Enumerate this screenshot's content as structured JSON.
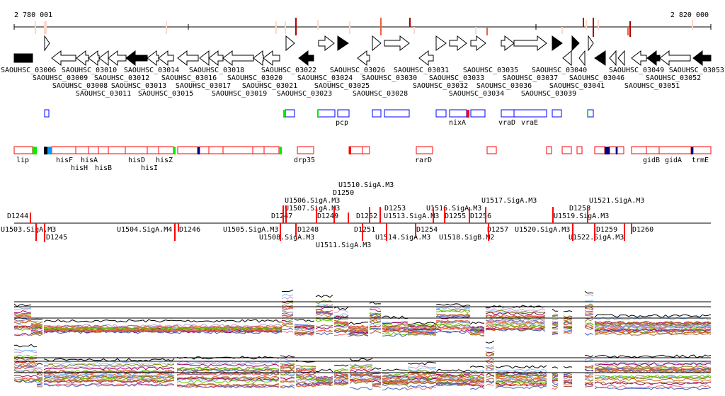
{
  "ruler": {
    "start_label": "2 780 001",
    "end_label": "2 820 000"
  },
  "colors": {
    "forward_feature": "#0000ff",
    "reverse_feature": "#ff0000",
    "marker_green": "#00ee00",
    "marker_navy": "#000080",
    "marker_blue": "#0099ff",
    "regulation": "#ff0000"
  },
  "genes": {
    "labels": [
      "SAOUHSC_03006",
      "SAOUHSC_03008",
      "SAOUHSC_03012",
      "SAOUHSC_03015",
      "SAOUHSC_03018",
      "SAOUHSC_03021",
      "SAOUHSC_03010",
      "SAOUHSC_03013",
      "SAOUHSC_03016",
      "SAOUHSC_03019",
      "SAOUHSC_03009",
      "SAOUHSC_03011",
      "SAOUHSC_03014",
      "SAOUHSC_03017",
      "SAOUHSC_03020",
      "SAOUHSC_03023",
      "SAOUHSC_03026",
      "SAOUHSC_03024",
      "SAOUHSC_03022",
      "SAOUHSC_03025",
      "SAOUHSC_03028",
      "SAOUHSC_03032",
      "SAOUHSC_03034",
      "SAOUHSC_03037",
      "SAOUHSC_03030",
      "SAOUHSC_03031",
      "SAOUHSC_03033",
      "SAOUHSC_03036",
      "SAOUHSC_03039",
      "SAOUHSC_03040",
      "SAOUHSC_03041",
      "SAOUHSC_03035",
      "SAOUHSC_03046",
      "SAOUHSC_03049",
      "SAOUHSC_03052",
      "SAOUHSC_03053",
      "SAOUHSC_03051"
    ]
  },
  "forward_features": {
    "labels": [
      "pcp",
      "nixA",
      "vraD",
      "vraE"
    ]
  },
  "reverse_features": {
    "labels": [
      "lip",
      "hisF",
      "hisH",
      "hisA",
      "hisB",
      "hisD",
      "hisI",
      "hisZ",
      "drp35",
      "rarD",
      "gidB",
      "gidA",
      "trmE"
    ]
  },
  "regulation": {
    "above_labels": [
      "D1244",
      "D1247",
      "U1507.SigA.M3",
      "U1506.SigA.M3",
      "D1249",
      "D1250",
      "U1510.SigA.M3",
      "D1252",
      "U1513.SigA.M3",
      "D1253",
      "U1516.SigA.M3",
      "D1255",
      "D1256",
      "U1517.SigA.M3",
      "U1519.SigA.M3",
      "D1258",
      "U1521.SigA.M3"
    ],
    "below_labels": [
      "U1503.SigA.M3",
      "D1245",
      "U1504.SigA.M4",
      "D1246",
      "U1505.SigA.M3",
      "U1508.SigA.M3",
      "D1248",
      "U1511.SigA.M3",
      "D1251",
      "U1514.SigA.M3",
      "D1254",
      "U1518.SigB.M2",
      "D1257",
      "U1520.SigA.M3",
      "U1522.SigA.M3",
      "D1259",
      "D1260"
    ]
  }
}
